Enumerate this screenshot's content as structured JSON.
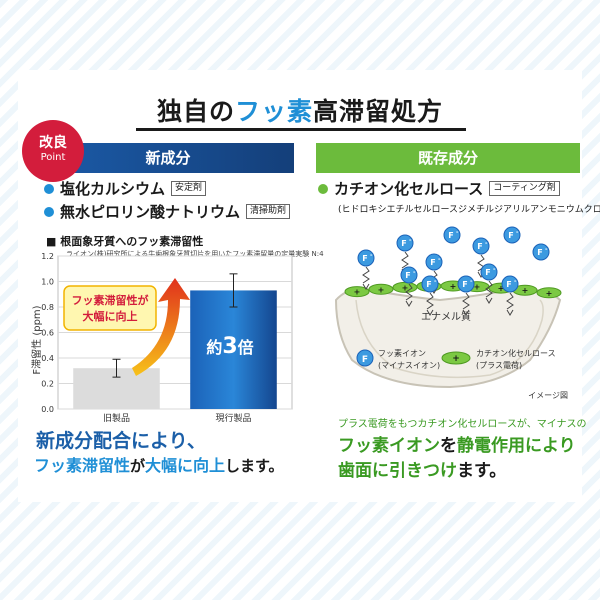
{
  "title": {
    "part1": "独自の",
    "part2": "フッ素",
    "part3": "高滞留処方"
  },
  "badge": {
    "line1": "改良",
    "line2": "Point"
  },
  "left": {
    "header": "新成分",
    "ingredients": [
      {
        "name": "塩化カルシウム",
        "tag": "安定剤"
      },
      {
        "name": "無水ピロリン酸ナトリウム",
        "tag": "清掃助剤"
      }
    ],
    "chart_title": "■ 根面象牙質へのフッ素滞留性",
    "chart_note": "ライオン(株)研究所による牛歯根象牙質切片を用いたフッ素滞留量の定量実験 N:4",
    "callout": {
      "line1": "フッ素滞留性が",
      "line2": "大幅に向上"
    },
    "bar_label": {
      "prefix": "約",
      "number": "3",
      "suffix": "倍"
    },
    "lead": {
      "line1": "新成分配合により、",
      "hl1": "フッ素滞留性",
      "mid": "が",
      "hl2": "大幅に向上",
      "end": "します。"
    }
  },
  "right": {
    "header": "既存成分",
    "ingredient": {
      "name": "カチオン化セルロース",
      "tag": "コーティング剤"
    },
    "subtitle": "(ヒドロキシエチルセルロースジメチルジアリルアンモニウムクロリド)",
    "diagram": {
      "enamel_label": "エナメル質",
      "legend_f_line1": "フッ素イオン",
      "legend_f_line2": "(マイナスイオン)",
      "legend_c_line1": "カチオン化セルロース",
      "legend_c_line2": "(プラス電荷)",
      "image_note": "イメージ図",
      "f_symbol": "F",
      "f_sup": "-",
      "plus": "+"
    },
    "lead": {
      "line1": "プラス電荷をもつカチオン化セルロースが、マイナスの",
      "l2a": "フッ素イオン",
      "l2b": "を",
      "l2c": "静電作用により",
      "l3a": "歯面に引きつけ",
      "l3b": "ます。"
    }
  },
  "chart_data": {
    "type": "bar",
    "categories": [
      "旧製品",
      "現行製品"
    ],
    "values": [
      0.32,
      0.93
    ],
    "errors": [
      0.07,
      0.13
    ],
    "ylabel": "F滞留性 (ppm)",
    "ylim": [
      0,
      1.2
    ],
    "yticks": [
      "0.0",
      "0.2",
      "0.4",
      "0.6",
      "0.8",
      "1.0",
      "1.2"
    ],
    "grid": true,
    "colors": [
      "#dcdcdc",
      "#1b62b8"
    ]
  }
}
